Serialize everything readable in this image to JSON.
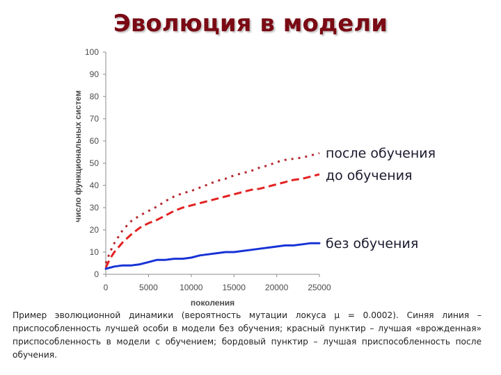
{
  "page": {
    "title": "Эволюция в модели",
    "caption_lines": [
      "Пример эволюционной динамики (вероятность мутации локуса μ = 0.0002). Синяя линия –",
      "приспособленность лучшей особи в модели без обучения; красный пунктир – лучшая",
      "«врожденная» приспособленность в модели с обучением; бордовый пунктир – лучшая",
      "приспособленность после обучения."
    ]
  },
  "colors": {
    "title": "#7a0a14",
    "blue": "#1733d6",
    "red": "#e32222",
    "maroon": "#b4262d",
    "axis": "#8a8a8a",
    "tick_text": "#4a4a4a"
  },
  "chart_data": {
    "type": "line",
    "xlabel": "поколения",
    "ylabel": "число функциональных систем",
    "xlim": [
      0,
      25000
    ],
    "ylim": [
      0,
      100
    ],
    "xticks": [
      0,
      5000,
      10000,
      15000,
      20000,
      25000
    ],
    "yticks": [
      0,
      10,
      20,
      30,
      40,
      50,
      60,
      70,
      80,
      90,
      100
    ],
    "grid": false,
    "legend": "right",
    "series": [
      {
        "name": "после обучения",
        "color": "#b4262d",
        "style": "dotted",
        "x": [
          0,
          500,
          1000,
          2000,
          3000,
          4000,
          5000,
          6000,
          7000,
          8000,
          9000,
          10000,
          11000,
          12000,
          13000,
          14000,
          15000,
          16000,
          17000,
          18000,
          19000,
          20000,
          21000,
          22000,
          23000,
          24000,
          25000
        ],
        "y": [
          5,
          10,
          14,
          20,
          24,
          26.5,
          28.5,
          30.5,
          33,
          35,
          36.5,
          37.5,
          39,
          40.5,
          42,
          43,
          44.5,
          45.5,
          46.5,
          48,
          49,
          50.5,
          51.5,
          52,
          52.5,
          53.5,
          54.5
        ]
      },
      {
        "name": "до обучения",
        "color": "#e32222",
        "style": "dashed",
        "x": [
          0,
          500,
          1000,
          2000,
          3000,
          4000,
          5000,
          6000,
          7000,
          8000,
          9000,
          10000,
          11000,
          12000,
          13000,
          14000,
          15000,
          16000,
          17000,
          18000,
          19000,
          20000,
          21000,
          22000,
          23000,
          24000,
          25000
        ],
        "y": [
          3,
          7,
          10,
          14.5,
          18,
          21,
          23,
          24.5,
          26.5,
          28.5,
          30,
          31,
          32,
          33,
          34,
          35,
          36,
          37,
          38,
          38.5,
          39.5,
          40.5,
          41.5,
          42.5,
          43,
          44,
          45
        ]
      },
      {
        "name": "без обучения",
        "color": "#1733d6",
        "style": "solid",
        "x": [
          0,
          1000,
          2000,
          3000,
          4000,
          5000,
          6000,
          7000,
          8000,
          9000,
          10000,
          11000,
          12000,
          13000,
          14000,
          15000,
          16000,
          17000,
          18000,
          19000,
          20000,
          21000,
          22000,
          23000,
          24000,
          25000
        ],
        "y": [
          2.5,
          3.5,
          4,
          4,
          4.5,
          5.5,
          6.5,
          6.5,
          7,
          7,
          7.5,
          8.5,
          9,
          9.5,
          10,
          10,
          10.5,
          11,
          11.5,
          12,
          12.5,
          13,
          13,
          13.5,
          14,
          14
        ]
      }
    ]
  }
}
